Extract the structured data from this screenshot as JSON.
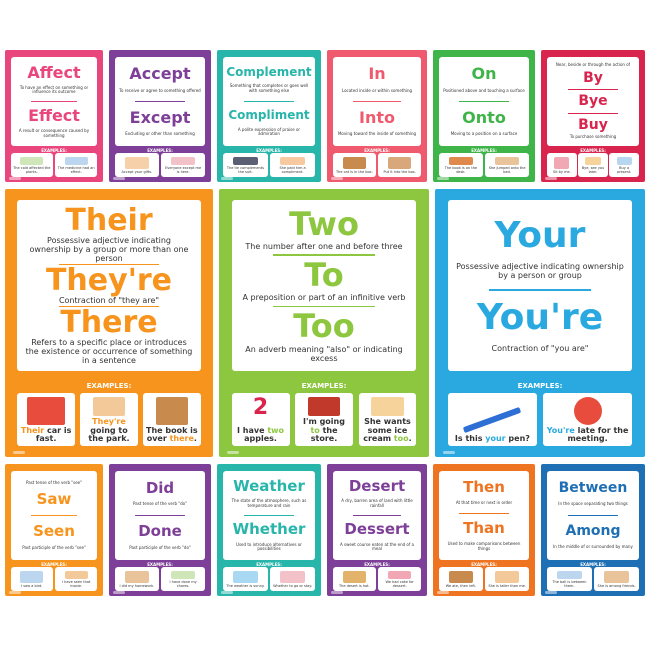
{
  "colors": {
    "pink": "#e8467c",
    "purple": "#7d3f98",
    "teal": "#28b5aa",
    "coral": "#ef5a6e",
    "green": "#3fb449",
    "crimson": "#d9244d",
    "orange": "#f7941d",
    "lime": "#8dc63f",
    "sky": "#29a9e0",
    "darkorange": "#ee7422",
    "navy": "#1f6fb5"
  },
  "examples_label": "EXAMPLES:",
  "top_row": [
    {
      "color": "#e8467c",
      "word1": "Affect",
      "def1": "To have an effect on something or influence its outcome",
      "word2": "Effect",
      "def2": "A result or consequence caused by something",
      "ex1": "The cold affected the plants.",
      "ex2": "The medicine had an effect."
    },
    {
      "color": "#7d3f98",
      "word1": "Accept",
      "def1": "To receive or agree to something offered",
      "word2": "Except",
      "def2": "Excluding or other than something",
      "ex1": "Accept your gifts.",
      "ex2": "Everyone except me is here."
    },
    {
      "color": "#28b5aa",
      "word1": "Complement",
      "def1": "Something that completes or goes well with something else",
      "word2": "Compliment",
      "def2": "A polite expression of praise or admiration",
      "ex1": "The tie complements the suit.",
      "ex2": "She paid him a compliment."
    },
    {
      "color": "#ef5a6e",
      "word1": "In",
      "def1": "Located inside or within something",
      "word2": "Into",
      "def2": "Moving toward the inside of something",
      "ex1": "The cat is in the box.",
      "ex2": "Put it into the box."
    },
    {
      "color": "#3fb449",
      "word1": "On",
      "def1": "Positioned above and touching a surface",
      "word2": "Onto",
      "def2": "Moving to a position on a surface",
      "ex1": "The book is on the desk.",
      "ex2": "She jumped onto the bed."
    },
    {
      "color": "#d9244d",
      "word1": "By",
      "def1": "Near, beside or through the action of",
      "word2": "Bye",
      "def2": "Used to say goodbye",
      "word3": "Buy",
      "def3": "To purchase something",
      "ex1": "Sit by me.",
      "ex2": "Bye, see you later.",
      "ex3": "Buy a present."
    }
  ],
  "big_row": [
    {
      "color": "#f7941d",
      "words": [
        {
          "word": "Their",
          "def": "Possessive adjective indicating ownership by a group or more than one person"
        },
        {
          "word": "They're",
          "def": "Contraction of \"they are\""
        },
        {
          "word": "There",
          "def": "Refers to a specific place or introduces the existence or occurrence of something in a sentence"
        }
      ],
      "examples": [
        {
          "pre": "",
          "key": "Their",
          "post": " car is fast."
        },
        {
          "pre": "",
          "key": "They're",
          "post": " going to the park."
        },
        {
          "pre": "The book is over ",
          "key": "there",
          "post": "."
        }
      ]
    },
    {
      "color": "#8dc63f",
      "words": [
        {
          "word": "Two",
          "def": "The number after one and before three"
        },
        {
          "word": "To",
          "def": "A preposition or part of an infinitive verb"
        },
        {
          "word": "Too",
          "def": "An adverb meaning \"also\" or indicating excess"
        }
      ],
      "examples": [
        {
          "pre": "I have ",
          "key": "two",
          "post": " apples.",
          "pic": "2"
        },
        {
          "pre": "I'm going ",
          "key": "to",
          "post": " the store."
        },
        {
          "pre": "She wants some ice cream ",
          "key": "too",
          "post": "."
        }
      ]
    },
    {
      "color": "#29a9e0",
      "words": [
        {
          "word": "Your",
          "def": "Possessive adjective indicating ownership by a person or group"
        },
        {
          "word": "You're",
          "def": "Contraction of \"you are\""
        }
      ],
      "examples": [
        {
          "pre": "Is this ",
          "key": "your",
          "post": " pen?"
        },
        {
          "pre": "",
          "key": "You're",
          "post": " late for the meeting."
        }
      ]
    }
  ],
  "bottom_row": [
    {
      "color": "#f7941d",
      "word1": "Saw",
      "def1": "Past tense of the verb \"see\"",
      "word2": "Seen",
      "def2": "Past participle of the verb \"see\"",
      "ex1": "I saw a bird.",
      "ex2": "I have seen that movie."
    },
    {
      "color": "#7d3f98",
      "word1": "Did",
      "def1": "Past tense of the verb \"do\"",
      "word2": "Done",
      "def2": "Past participle of the verb \"do\"",
      "ex1": "I did my homework.",
      "ex2": "I have done my chores."
    },
    {
      "color": "#28b5aa",
      "word1": "Weather",
      "def1": "The state of the atmosphere, such as temperature and rain",
      "word2": "Whether",
      "def2": "Used to introduce alternatives or possibilities",
      "ex1": "The weather is sunny.",
      "ex2": "Whether to go or stay."
    },
    {
      "color": "#7d3f98",
      "word1": "Desert",
      "def1": "A dry, barren area of land with little rainfall",
      "word2": "Dessert",
      "def2": "A sweet course eaten at the end of a meal",
      "ex1": "The desert is hot.",
      "ex2": "We had cake for dessert."
    },
    {
      "color": "#ee7422",
      "word1": "Then",
      "def1": "At that time or next in order",
      "word2": "Than",
      "def2": "Used to make comparisons between things",
      "ex1": "We ate, then left.",
      "ex2": "She is taller than me."
    },
    {
      "color": "#1f6fb5",
      "word1": "Between",
      "def1": "In the space separating two things",
      "word2": "Among",
      "def2": "In the middle of or surrounded by many",
      "ex1": "The ball is between them.",
      "ex2": "She is among friends."
    }
  ]
}
